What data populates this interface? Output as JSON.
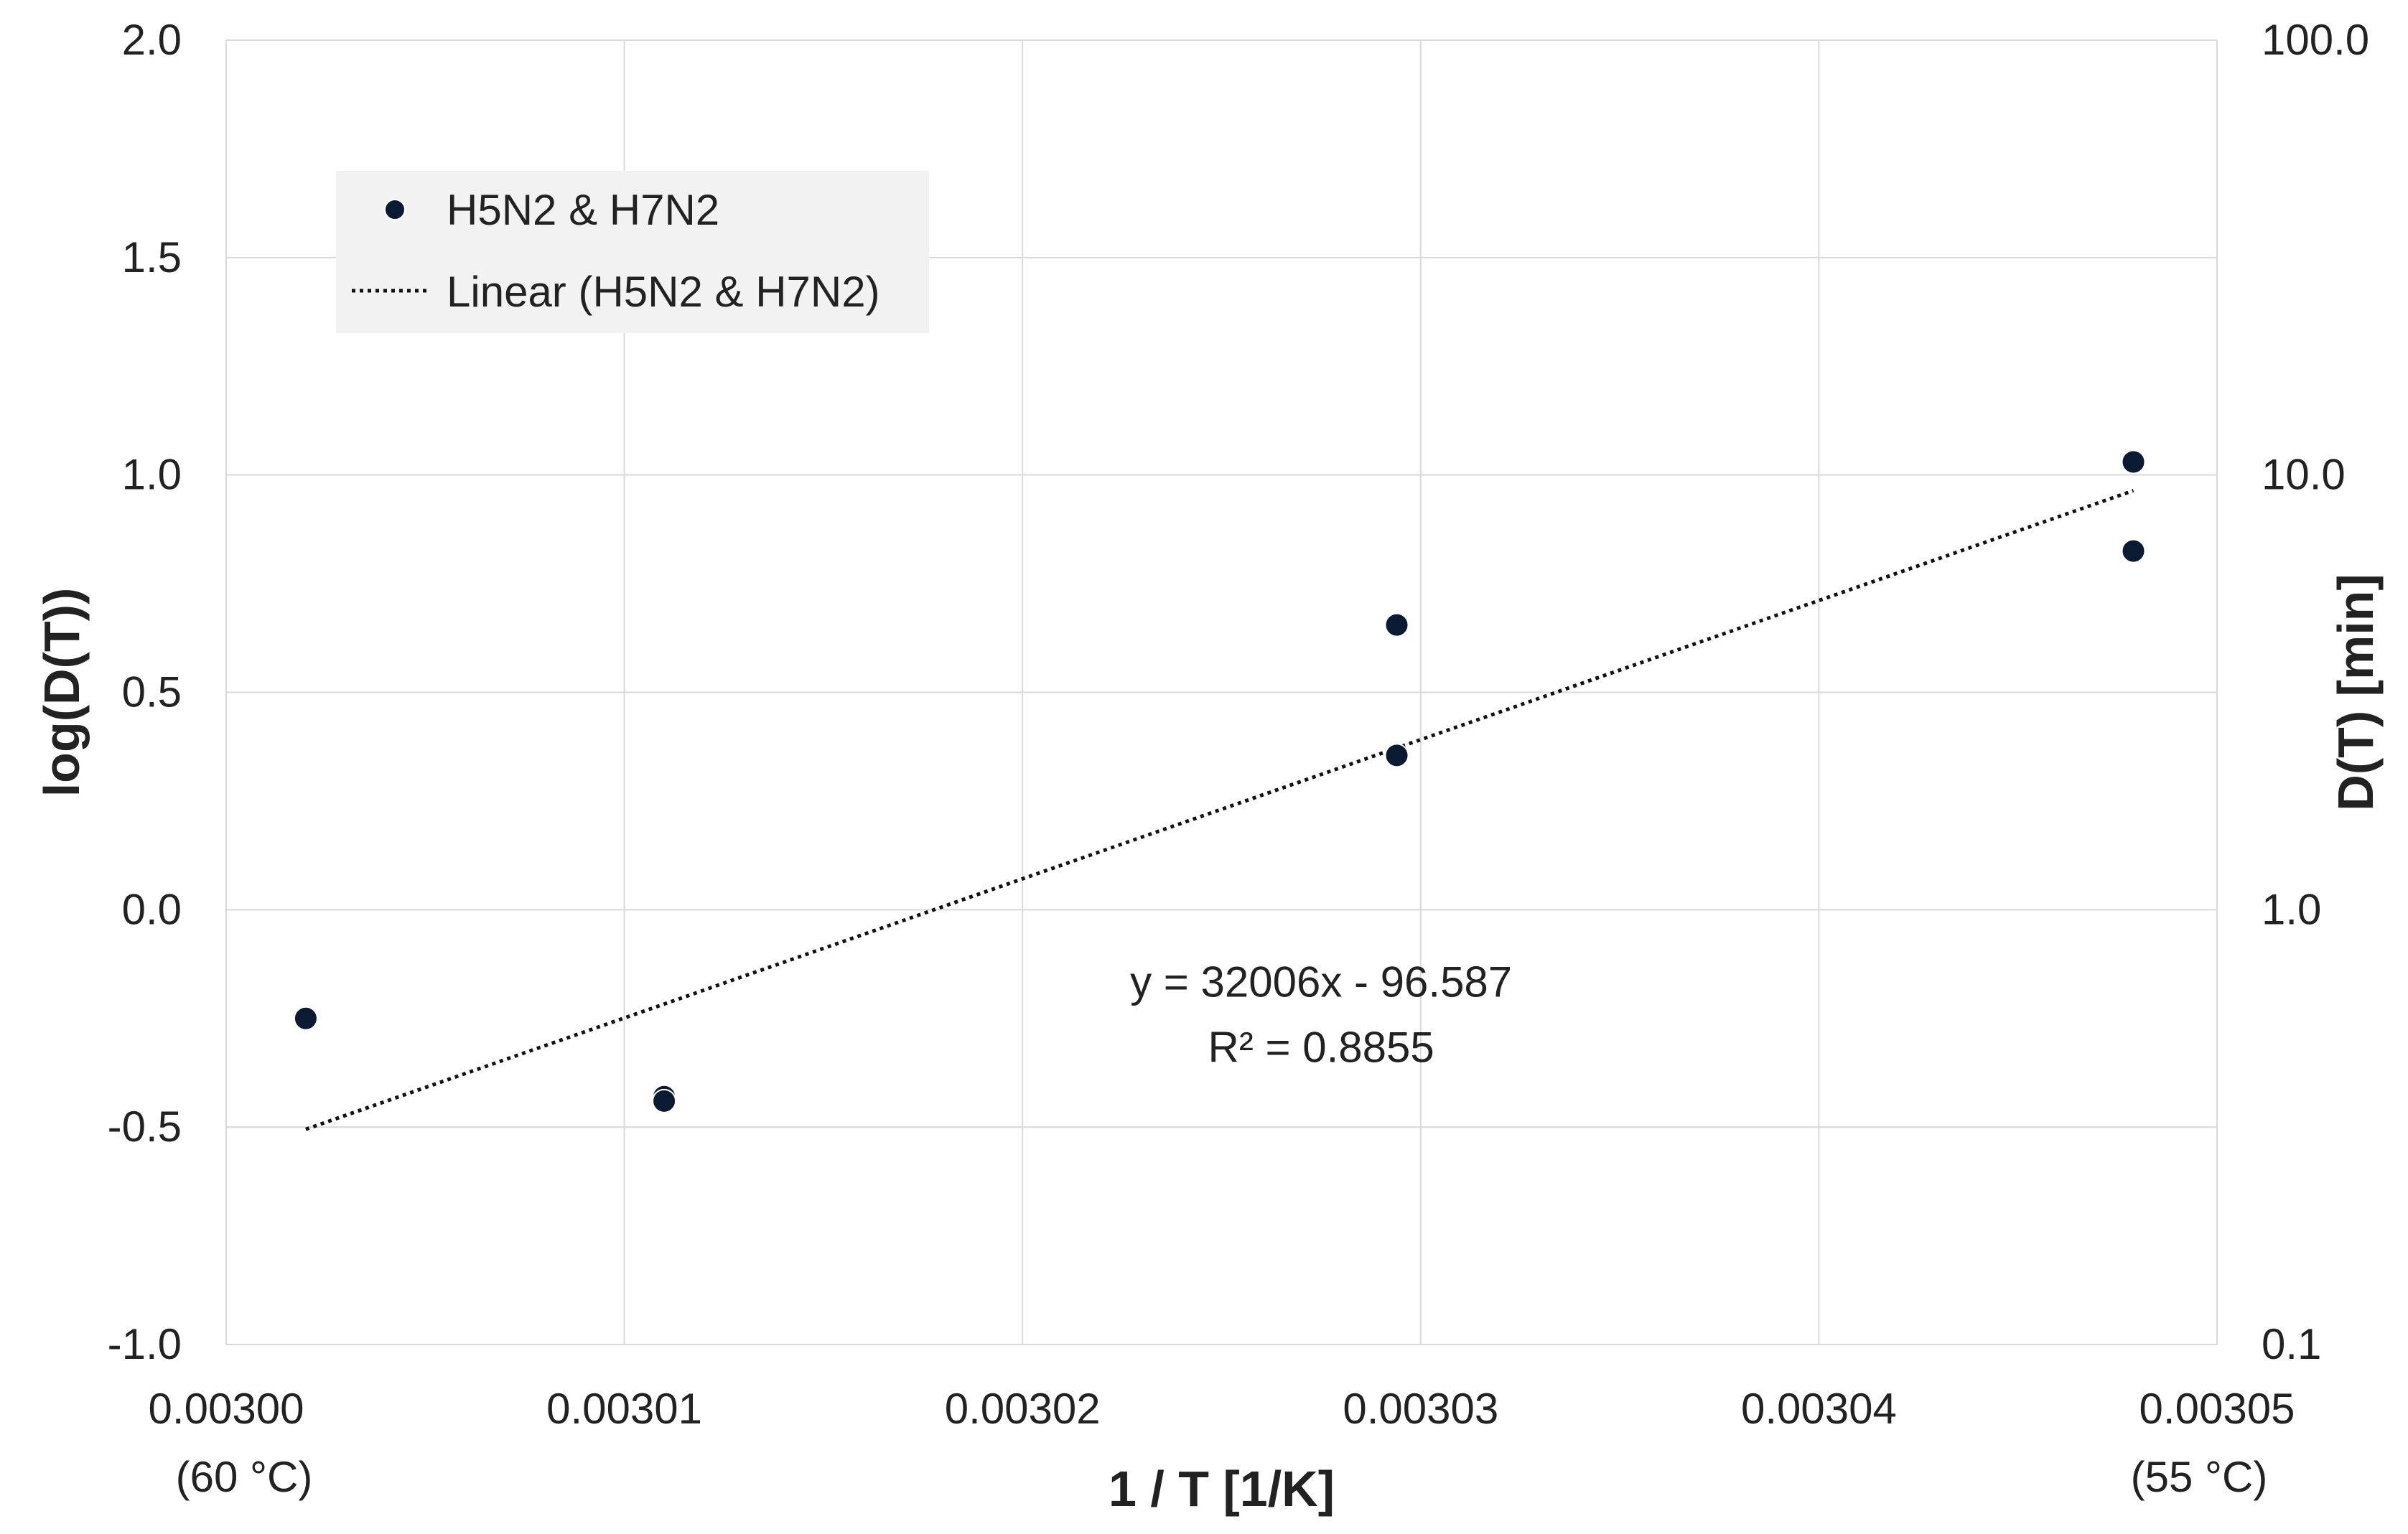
{
  "chart_data": {
    "type": "scatter",
    "title": "",
    "xlabel": "1 / T [1/K]",
    "ylabel": "log(D(T))",
    "y2label": "D(T) [min]",
    "xlim": [
      0.003,
      0.00305
    ],
    "ylim": [
      -1.0,
      2.0
    ],
    "x_ticks": [
      0.003,
      0.00301,
      0.00302,
      0.00303,
      0.00304,
      0.00305
    ],
    "x_tick_labels": [
      "0.00300",
      "0.00301",
      "0.00302",
      "0.00303",
      "0.00304",
      "0.00305"
    ],
    "x_sub_labels": [
      {
        "x": 0.003,
        "text": "(60 °C)"
      },
      {
        "x": 0.00305,
        "text": "(55 °C)"
      }
    ],
    "y_ticks": [
      -1.0,
      -0.5,
      0.0,
      0.5,
      1.0,
      1.5,
      2.0
    ],
    "y_tick_labels": [
      "-1.0",
      "-0.5",
      "0.0",
      "0.5",
      "1.0",
      "1.5",
      "2.0"
    ],
    "y2_scale": "log",
    "y2_ticks": [
      -1.0,
      0.0,
      1.0,
      2.0
    ],
    "y2_tick_labels": [
      "0.1",
      "1.0",
      "10.0",
      "100.0"
    ],
    "grid": true,
    "legend_position": "top-left",
    "series": [
      {
        "name": "H5N2 & H7N2",
        "type": "scatter",
        "color": "#0b1a33",
        "points": [
          {
            "x": 0.003002,
            "y": -0.25
          },
          {
            "x": 0.003011,
            "y": -0.43
          },
          {
            "x": 0.003011,
            "y": -0.44
          },
          {
            "x": 0.0030294,
            "y": 0.655
          },
          {
            "x": 0.0030294,
            "y": 0.355
          },
          {
            "x": 0.0030479,
            "y": 1.03
          },
          {
            "x": 0.0030479,
            "y": 0.825
          }
        ]
      },
      {
        "name": "Linear (H5N2 & H7N2)",
        "type": "line",
        "style": "dotted",
        "color": "#111111",
        "slope": 32006,
        "intercept": -96.587,
        "x_range": [
          0.003002,
          0.0030479
        ]
      }
    ],
    "annotations": [
      {
        "text": "y = 32006x - 96.587",
        "x": 0.0030275,
        "y": -0.2
      },
      {
        "text": "R² = 0.8855",
        "x": 0.0030275,
        "y": -0.35
      }
    ]
  }
}
